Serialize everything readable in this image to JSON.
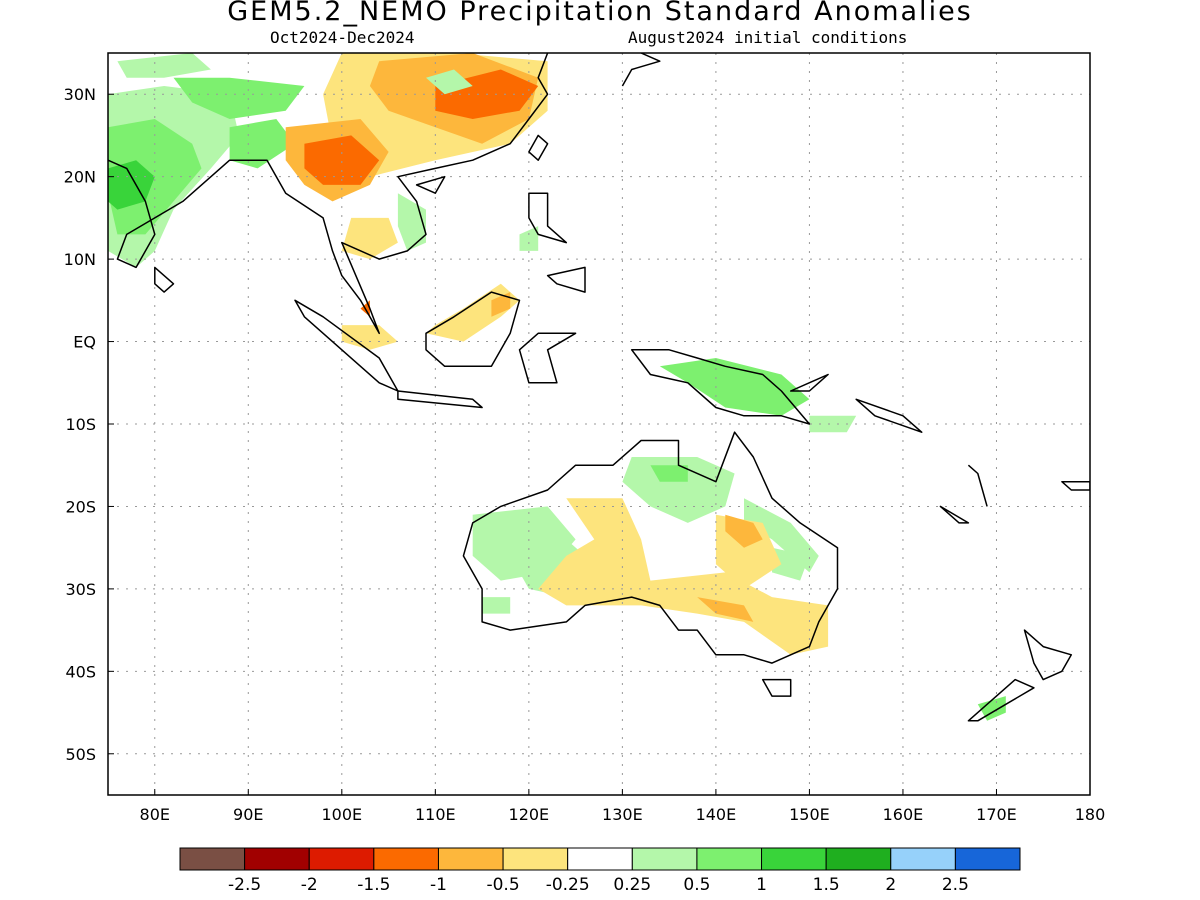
{
  "header": {
    "title": "GEM5.2_NEMO Precipitation Standard Anomalies",
    "period": "Oct2024-Dec2024",
    "init": "August2024 initial conditions"
  },
  "map": {
    "lon_range": [
      75,
      180
    ],
    "lat_range": [
      -55,
      35
    ],
    "lon_ticks": [
      {
        "value": 80,
        "label": "80E"
      },
      {
        "value": 90,
        "label": "90E"
      },
      {
        "value": 100,
        "label": "100E"
      },
      {
        "value": 110,
        "label": "110E"
      },
      {
        "value": 120,
        "label": "120E"
      },
      {
        "value": 130,
        "label": "130E"
      },
      {
        "value": 140,
        "label": "140E"
      },
      {
        "value": 150,
        "label": "150E"
      },
      {
        "value": 160,
        "label": "160E"
      },
      {
        "value": 170,
        "label": "170E"
      },
      {
        "value": 180,
        "label": "180"
      }
    ],
    "lat_ticks": [
      {
        "value": 30,
        "label": "30N"
      },
      {
        "value": 20,
        "label": "20N"
      },
      {
        "value": 10,
        "label": "10N"
      },
      {
        "value": 0,
        "label": "EQ"
      },
      {
        "value": -10,
        "label": "10S"
      },
      {
        "value": -20,
        "label": "20S"
      },
      {
        "value": -30,
        "label": "30S"
      },
      {
        "value": -40,
        "label": "40S"
      },
      {
        "value": -50,
        "label": "50S"
      }
    ],
    "grid": "dotted"
  },
  "colorbar": {
    "colors": [
      "#7a4f44",
      "#a10000",
      "#dd1b00",
      "#fb6a00",
      "#fdb73c",
      "#fde47d",
      "#ffffff",
      "#b4f7aa",
      "#7df06f",
      "#39d43a",
      "#1faf1f",
      "#96d1fa",
      "#1766d9"
    ],
    "labels": [
      "-2.5",
      "-2",
      "-1.5",
      "-1",
      "-0.5",
      "-0.25",
      "0.25",
      "0.5",
      "1",
      "1.5",
      "2",
      "2.5"
    ]
  }
}
